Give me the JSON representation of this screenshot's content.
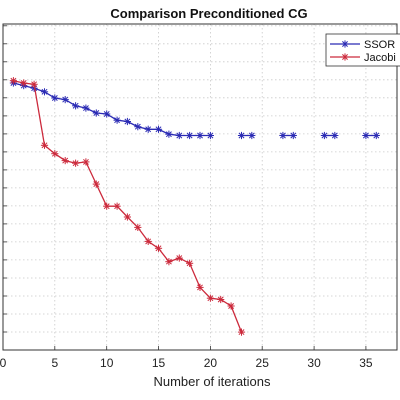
{
  "chart_data": {
    "type": "line",
    "title": "Comparison Preconditioned CG",
    "xlabel": "Number of iterations",
    "ylabel": "",
    "xlim": [
      0,
      38
    ],
    "ylim": [
      0,
      1
    ],
    "x_ticks": [
      0,
      5,
      10,
      15,
      20,
      25,
      30,
      35
    ],
    "grid": true,
    "legend_position": "top-right",
    "series": [
      {
        "name": "SSOR",
        "color": "#2b2bb4",
        "marker": "asterisk",
        "x": [
          1,
          2,
          3,
          4,
          5,
          6,
          7,
          8,
          9,
          10,
          11,
          12,
          13,
          14,
          15,
          16,
          17,
          18,
          19,
          20,
          23,
          24,
          27,
          28,
          31,
          32,
          35,
          36
        ],
        "y": [
          0.819,
          0.811,
          0.803,
          0.792,
          0.773,
          0.768,
          0.749,
          0.742,
          0.727,
          0.724,
          0.705,
          0.701,
          0.685,
          0.677,
          0.677,
          0.662,
          0.658,
          0.658,
          0.658,
          0.658,
          0.658,
          0.658,
          0.658,
          0.658,
          0.658,
          0.658,
          0.658,
          0.658
        ],
        "segments": [
          [
            0,
            19
          ],
          [
            20,
            21
          ],
          [
            22,
            23
          ],
          [
            24,
            25
          ],
          [
            26,
            27
          ]
        ]
      },
      {
        "name": "Jacobi",
        "color": "#cc2a3c",
        "marker": "asterisk",
        "x": [
          1,
          2,
          3,
          4,
          5,
          6,
          7,
          8,
          9,
          10,
          11,
          12,
          13,
          14,
          15,
          16,
          17,
          18,
          19,
          20,
          21,
          22,
          23
        ],
        "y": [
          0.826,
          0.819,
          0.815,
          0.628,
          0.602,
          0.581,
          0.573,
          0.577,
          0.509,
          0.441,
          0.441,
          0.408,
          0.376,
          0.333,
          0.312,
          0.271,
          0.282,
          0.266,
          0.192,
          0.159,
          0.155,
          0.135,
          0.055
        ]
      }
    ]
  }
}
